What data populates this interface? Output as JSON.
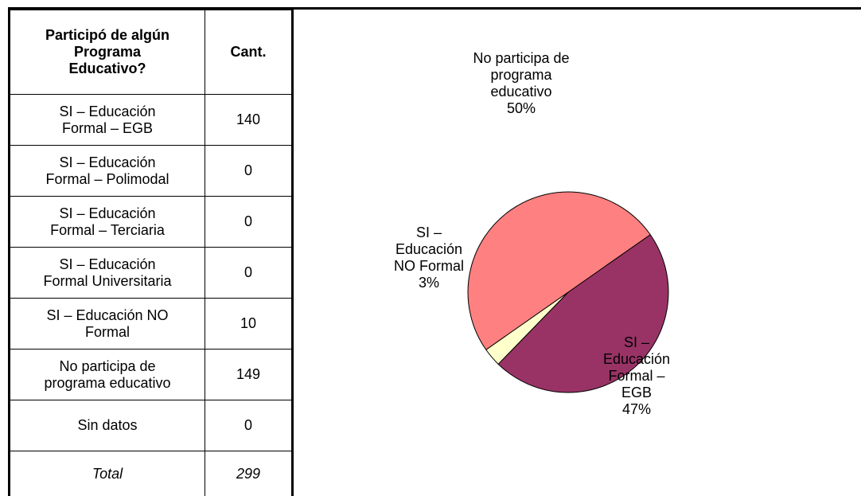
{
  "table": {
    "header": [
      "Participó de algún Programa Educativo?",
      "Cant."
    ],
    "rows": [
      [
        "SI – Educación Formal – EGB",
        140
      ],
      [
        "SI – Educación Formal – Polimodal",
        0
      ],
      [
        "SI – Educación Formal – Terciaria",
        0
      ],
      [
        "SI – Educación Formal Universitaria",
        0
      ],
      [
        "SI – Educación NO Formal",
        10
      ],
      [
        "No participa de programa educativo",
        149
      ],
      [
        "Sin datos",
        0
      ]
    ],
    "total": [
      "Total",
      299
    ]
  },
  "chart_data": {
    "type": "pie",
    "categories": [
      "SI – Educación Formal – EGB",
      "SI – Educación NO Formal",
      "No participa de programa educativo"
    ],
    "values": [
      47,
      3,
      50
    ],
    "value_labels": [
      "47%",
      "3%",
      "50%"
    ],
    "colors": [
      "#993366",
      "#ffffcc",
      "#ff8080"
    ]
  }
}
